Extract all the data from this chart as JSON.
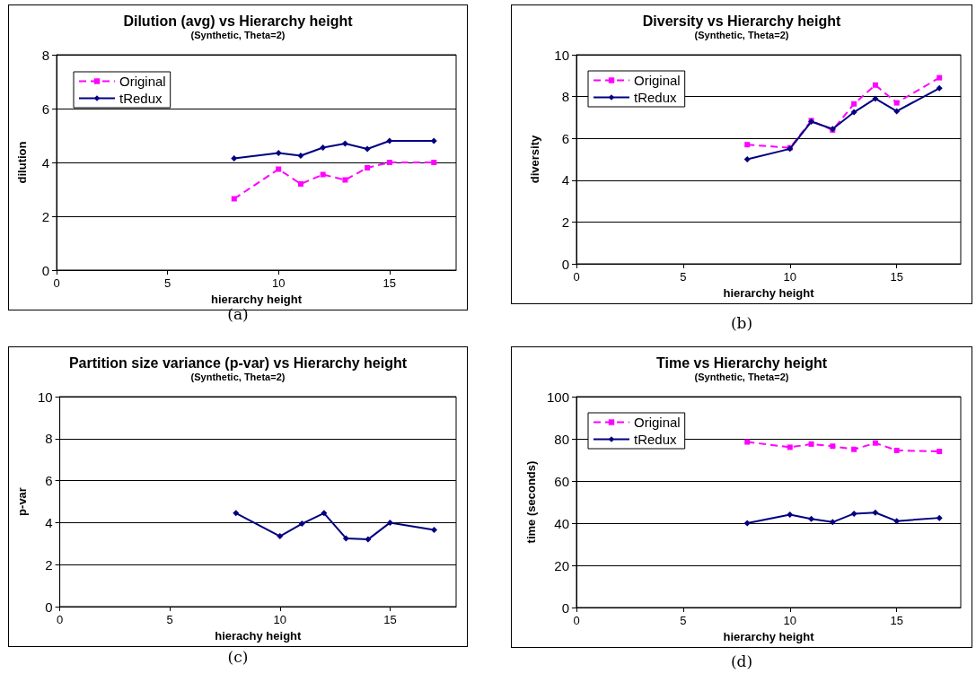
{
  "chart_data": [
    {
      "type": "line",
      "title": "Dilution (avg) vs Hierarchy height",
      "subtitle": "(Synthetic, Theta=2)",
      "xlabel": "hierarchy height",
      "ylabel": "dilution",
      "annotations": [
        "(a)"
      ],
      "x": [
        8,
        10,
        11,
        12,
        13,
        14,
        15,
        17
      ],
      "xlim": [
        0,
        18
      ],
      "xticks": [
        0,
        5,
        10,
        15
      ],
      "ylim": [
        0,
        8
      ],
      "yticks": [
        0,
        2,
        4,
        6,
        8
      ],
      "grid": "y",
      "legend": "top left",
      "series": [
        {
          "name": "Original",
          "color": "#ff00ff",
          "marker": "square",
          "line_style": "dashed",
          "values": [
            2.65,
            3.75,
            3.2,
            3.55,
            3.35,
            3.8,
            4.0,
            4.0
          ]
        },
        {
          "name": "tRedux",
          "color": "#000080",
          "marker": "diamond",
          "line_style": "solid",
          "values": [
            4.15,
            4.35,
            4.25,
            4.55,
            4.7,
            4.5,
            4.8,
            4.8
          ]
        }
      ]
    },
    {
      "type": "line",
      "title": "Diversity vs Hierarchy height",
      "subtitle": "(Synthetic, Theta=2)",
      "xlabel": "hierarchy height",
      "ylabel": "diversity",
      "annotations": [
        "(b)"
      ],
      "x": [
        8,
        10,
        11,
        12,
        13,
        14,
        15,
        17
      ],
      "xlim": [
        0,
        18
      ],
      "xticks": [
        0,
        5,
        10,
        15
      ],
      "ylim": [
        0,
        10
      ],
      "yticks": [
        0,
        2,
        4,
        6,
        8,
        10
      ],
      "grid": "y",
      "legend": "top left",
      "series": [
        {
          "name": "Original",
          "color": "#ff00ff",
          "marker": "square",
          "line_style": "dashed",
          "values": [
            5.7,
            5.55,
            6.85,
            6.4,
            7.65,
            8.55,
            7.7,
            8.9
          ]
        },
        {
          "name": "tRedux",
          "color": "#000080",
          "marker": "diamond",
          "line_style": "solid",
          "values": [
            5.0,
            5.5,
            6.8,
            6.45,
            7.25,
            7.9,
            7.3,
            8.4
          ]
        }
      ]
    },
    {
      "type": "line",
      "title": "Partition size variance (p-var) vs Hierarchy height",
      "subtitle": "(Synthetic, Theta=2)",
      "xlabel": "hierachy height",
      "ylabel": "p-var",
      "annotations": [
        "(c)"
      ],
      "x": [
        8,
        10,
        11,
        12,
        13,
        14,
        15,
        17
      ],
      "xlim": [
        0,
        18
      ],
      "xticks": [
        0,
        5,
        10,
        15
      ],
      "ylim": [
        0,
        10
      ],
      "yticks": [
        0,
        2,
        4,
        6,
        8,
        10
      ],
      "grid": "y",
      "series": [
        {
          "color": "#000080",
          "marker": "diamond",
          "line_style": "solid",
          "values": [
            4.45,
            3.35,
            3.95,
            4.45,
            3.25,
            3.2,
            4.0,
            3.65
          ]
        }
      ]
    },
    {
      "type": "line",
      "title": "Time vs Hierarchy height",
      "subtitle": "(Synthetic, Theta=2)",
      "xlabel": "hierarchy height",
      "ylabel": "time (seconds)",
      "annotations": [
        "(d)"
      ],
      "x": [
        8,
        10,
        11,
        12,
        13,
        14,
        15,
        17
      ],
      "xlim": [
        0,
        18
      ],
      "xticks": [
        0,
        5,
        10,
        15
      ],
      "ylim": [
        0,
        100
      ],
      "yticks": [
        0,
        20,
        40,
        60,
        80,
        100
      ],
      "grid": "y",
      "legend": "top left",
      "series": [
        {
          "name": "Original",
          "color": "#ff00ff",
          "marker": "square",
          "line_style": "dashed",
          "values": [
            78.5,
            76,
            77.5,
            76.5,
            75,
            78,
            74.5,
            74
          ]
        },
        {
          "name": "tRedux",
          "color": "#000080",
          "marker": "diamond",
          "line_style": "solid",
          "values": [
            40,
            44,
            42,
            40.5,
            44.5,
            45,
            41,
            42.5
          ]
        }
      ]
    }
  ]
}
